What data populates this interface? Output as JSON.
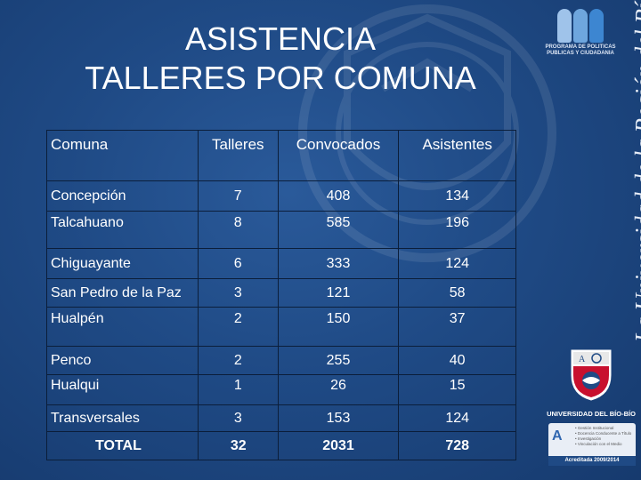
{
  "title": {
    "line1": "ASISTENCIA",
    "line2": "TALLERES POR COMUNA"
  },
  "table": {
    "headers": [
      "Comuna",
      "Talleres",
      "Convocados",
      "Asistentes"
    ],
    "rows": [
      [
        "Concepción",
        "7",
        "408",
        "134"
      ],
      [
        "Talcahuano",
        "8",
        "585",
        "196"
      ],
      [
        "Chiguayante",
        "6",
        "333",
        "124"
      ],
      [
        "San Pedro de la Paz",
        "3",
        "121",
        "58"
      ],
      [
        "Hualpén",
        "2",
        "150",
        "37"
      ],
      [
        "Penco",
        "2",
        "255",
        "40"
      ],
      [
        "Hualqui",
        "1",
        "26",
        "15"
      ],
      [
        "Transversales",
        "3",
        "153",
        "124"
      ]
    ],
    "total": [
      "TOTAL",
      "32",
      "2031",
      "728"
    ]
  },
  "branding": {
    "program_caption": "PROGRAMA DE POLITICAS PUBLICAS Y CIUDADANIA",
    "vertical_slogan": "La Universidad de la Región del Bío-Bío",
    "university_name": "UNIVERSIDAD DEL BÍO-BÍO",
    "accreditation_items": [
      "• Gestión Institucional",
      "• Docencia Conducente a Título",
      "• Investigación",
      "• Vinculación con el Medio"
    ],
    "accreditation_band": "Acreditada 2009/2014"
  },
  "colors": {
    "background": "#1f4a85",
    "text": "#ffffff",
    "grid_line": "#0b1e3a"
  }
}
